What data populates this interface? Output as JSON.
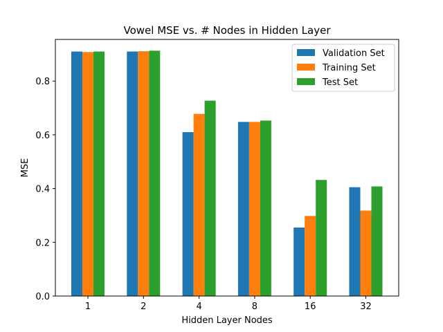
{
  "chart_data": {
    "type": "bar",
    "title": "Vowel MSE vs. # Nodes in Hidden Layer",
    "xlabel": "Hidden Layer Nodes",
    "ylabel": "MSE",
    "categories": [
      "1",
      "2",
      "4",
      "8",
      "16",
      "32"
    ],
    "ylim": [
      0,
      0.955
    ],
    "yticks": [
      0.0,
      0.2,
      0.4,
      0.6,
      0.8
    ],
    "ytick_labels": [
      "0.0",
      "0.2",
      "0.4",
      "0.6",
      "0.8"
    ],
    "grid": false,
    "legend_position": "top-right",
    "series": [
      {
        "name": "Validation Set",
        "color": "#1f77b4",
        "values": [
          0.91,
          0.91,
          0.61,
          0.648,
          0.255,
          0.405
        ]
      },
      {
        "name": "Training Set",
        "color": "#ff7f0e",
        "values": [
          0.908,
          0.911,
          0.678,
          0.648,
          0.298,
          0.318
        ]
      },
      {
        "name": "Test Set",
        "color": "#2ca02c",
        "values": [
          0.91,
          0.913,
          0.727,
          0.653,
          0.432,
          0.408
        ]
      }
    ]
  }
}
